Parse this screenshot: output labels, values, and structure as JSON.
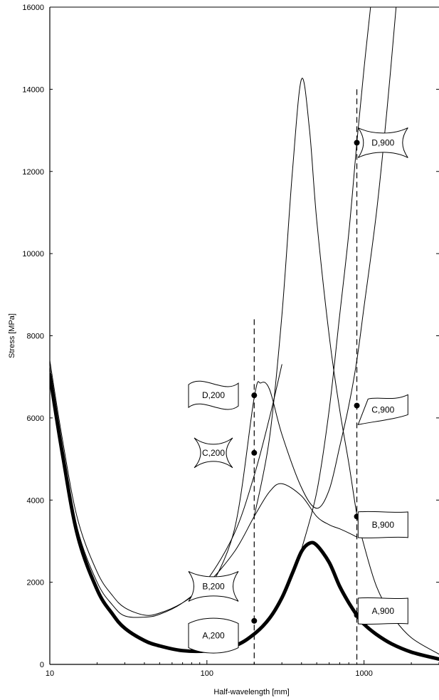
{
  "chart_data": {
    "type": "line",
    "title": "",
    "xlabel": "Half-wavelength [mm]",
    "ylabel": "Stress [MPa]",
    "xscale": "log",
    "xlim": [
      10,
      3000
    ],
    "ylim": [
      0,
      16000
    ],
    "x_ticks": [
      10,
      100,
      1000
    ],
    "x_tick_labels": [
      "10",
      "100",
      "1000"
    ],
    "y_ticks": [
      0,
      2000,
      4000,
      6000,
      8000,
      10000,
      12000,
      14000,
      16000
    ],
    "y_tick_labels": [
      "0",
      "2000",
      "4000",
      "6000",
      "8000",
      "10000",
      "12000",
      "14000",
      "16000"
    ],
    "grid": false,
    "series": [
      {
        "style": "thick",
        "points": [
          [
            10,
            7050
          ],
          [
            12,
            5150
          ],
          [
            15,
            3150
          ],
          [
            20,
            1820
          ],
          [
            25,
            1230
          ],
          [
            30,
            880
          ],
          [
            40,
            580
          ],
          [
            50,
            450
          ],
          [
            70,
            335
          ],
          [
            100,
            330
          ],
          [
            150,
            450
          ],
          [
            200,
            740
          ],
          [
            250,
            1120
          ],
          [
            300,
            1620
          ],
          [
            350,
            2220
          ],
          [
            400,
            2750
          ],
          [
            450,
            2950
          ],
          [
            500,
            2900
          ],
          [
            600,
            2480
          ],
          [
            700,
            1900
          ],
          [
            800,
            1500
          ],
          [
            900,
            1200
          ],
          [
            1000,
            980
          ],
          [
            1200,
            730
          ],
          [
            1500,
            500
          ],
          [
            2000,
            300
          ],
          [
            3000,
            130
          ]
        ]
      },
      {
        "style": "thin",
        "points": [
          [
            10,
            7250
          ],
          [
            12,
            5300
          ],
          [
            15,
            3300
          ],
          [
            20,
            2000
          ],
          [
            25,
            1450
          ],
          [
            30,
            1180
          ],
          [
            40,
            1150
          ],
          [
            50,
            1220
          ],
          [
            70,
            1500
          ],
          [
            100,
            2050
          ],
          [
            150,
            3200
          ],
          [
            200,
            4600
          ],
          [
            250,
            6000
          ],
          [
            300,
            7300
          ]
        ]
      },
      {
        "style": "thin",
        "points": [
          [
            10,
            7400
          ],
          [
            12,
            5500
          ],
          [
            15,
            3550
          ],
          [
            20,
            2250
          ],
          [
            25,
            1680
          ],
          [
            30,
            1380
          ],
          [
            40,
            1200
          ],
          [
            50,
            1250
          ],
          [
            70,
            1500
          ],
          [
            100,
            1950
          ],
          [
            150,
            2750
          ],
          [
            200,
            3600
          ],
          [
            250,
            4200
          ],
          [
            300,
            4400
          ],
          [
            400,
            4100
          ],
          [
            500,
            3600
          ],
          [
            600,
            3400
          ],
          [
            700,
            3300
          ],
          [
            800,
            3200
          ],
          [
            900,
            3100
          ]
        ]
      },
      {
        "style": "thin",
        "points": [
          [
            100,
            1700
          ],
          [
            150,
            3300
          ],
          [
            200,
            6500
          ],
          [
            220,
            6850
          ],
          [
            250,
            6700
          ],
          [
            300,
            5600
          ],
          [
            400,
            4300
          ],
          [
            500,
            3800
          ],
          [
            600,
            4250
          ],
          [
            700,
            5300
          ],
          [
            800,
            6300
          ],
          [
            900,
            7400
          ],
          [
            1000,
            8700
          ],
          [
            1200,
            11000
          ],
          [
            1400,
            13500
          ],
          [
            1600,
            16000
          ]
        ]
      },
      {
        "style": "thin",
        "points": [
          [
            200,
            3600
          ],
          [
            250,
            5500
          ],
          [
            300,
            8500
          ],
          [
            350,
            12000
          ],
          [
            400,
            14250
          ],
          [
            450,
            13000
          ],
          [
            500,
            10800
          ],
          [
            600,
            8000
          ],
          [
            700,
            6200
          ],
          [
            800,
            4900
          ],
          [
            900,
            3650
          ],
          [
            1000,
            2900
          ],
          [
            1200,
            1900
          ],
          [
            1500,
            1200
          ],
          [
            2000,
            650
          ],
          [
            3000,
            250
          ]
        ]
      },
      {
        "style": "thin",
        "points": [
          [
            400,
            2800
          ],
          [
            500,
            4200
          ],
          [
            600,
            6200
          ],
          [
            700,
            8500
          ],
          [
            800,
            10500
          ],
          [
            900,
            12700
          ],
          [
            1000,
            14500
          ],
          [
            1100,
            16000
          ]
        ]
      }
    ],
    "vlines": [
      {
        "x": 200,
        "y_top": 8400,
        "style": "dashed"
      },
      {
        "x": 900,
        "y_top": 14000,
        "style": "dashed"
      }
    ],
    "markers": [
      {
        "x": 200,
        "y": 1060
      },
      {
        "x": 200,
        "y": 5150
      },
      {
        "x": 200,
        "y": 6550
      },
      {
        "x": 900,
        "y": 1200
      },
      {
        "x": 900,
        "y": 3600
      },
      {
        "x": 900,
        "y": 6300
      },
      {
        "x": 900,
        "y": 12700
      }
    ],
    "annotations": [
      {
        "text": "D,200",
        "x": 110,
        "y": 6550,
        "shape": "wave"
      },
      {
        "text": "C,200",
        "x": 110,
        "y": 5150,
        "shape": "bow"
      },
      {
        "text": "B,200",
        "x": 110,
        "y": 1900,
        "shape": "concave"
      },
      {
        "text": "A,200",
        "x": 110,
        "y": 700,
        "shape": "bulge"
      },
      {
        "text": "D,900",
        "x": 1320,
        "y": 12700,
        "shape": "concave"
      },
      {
        "text": "C,900",
        "x": 1320,
        "y": 6200,
        "shape": "parallelogram"
      },
      {
        "text": "B,900",
        "x": 1320,
        "y": 3400,
        "shape": "rect"
      },
      {
        "text": "A,900",
        "x": 1320,
        "y": 1300,
        "shape": "rect"
      }
    ]
  }
}
